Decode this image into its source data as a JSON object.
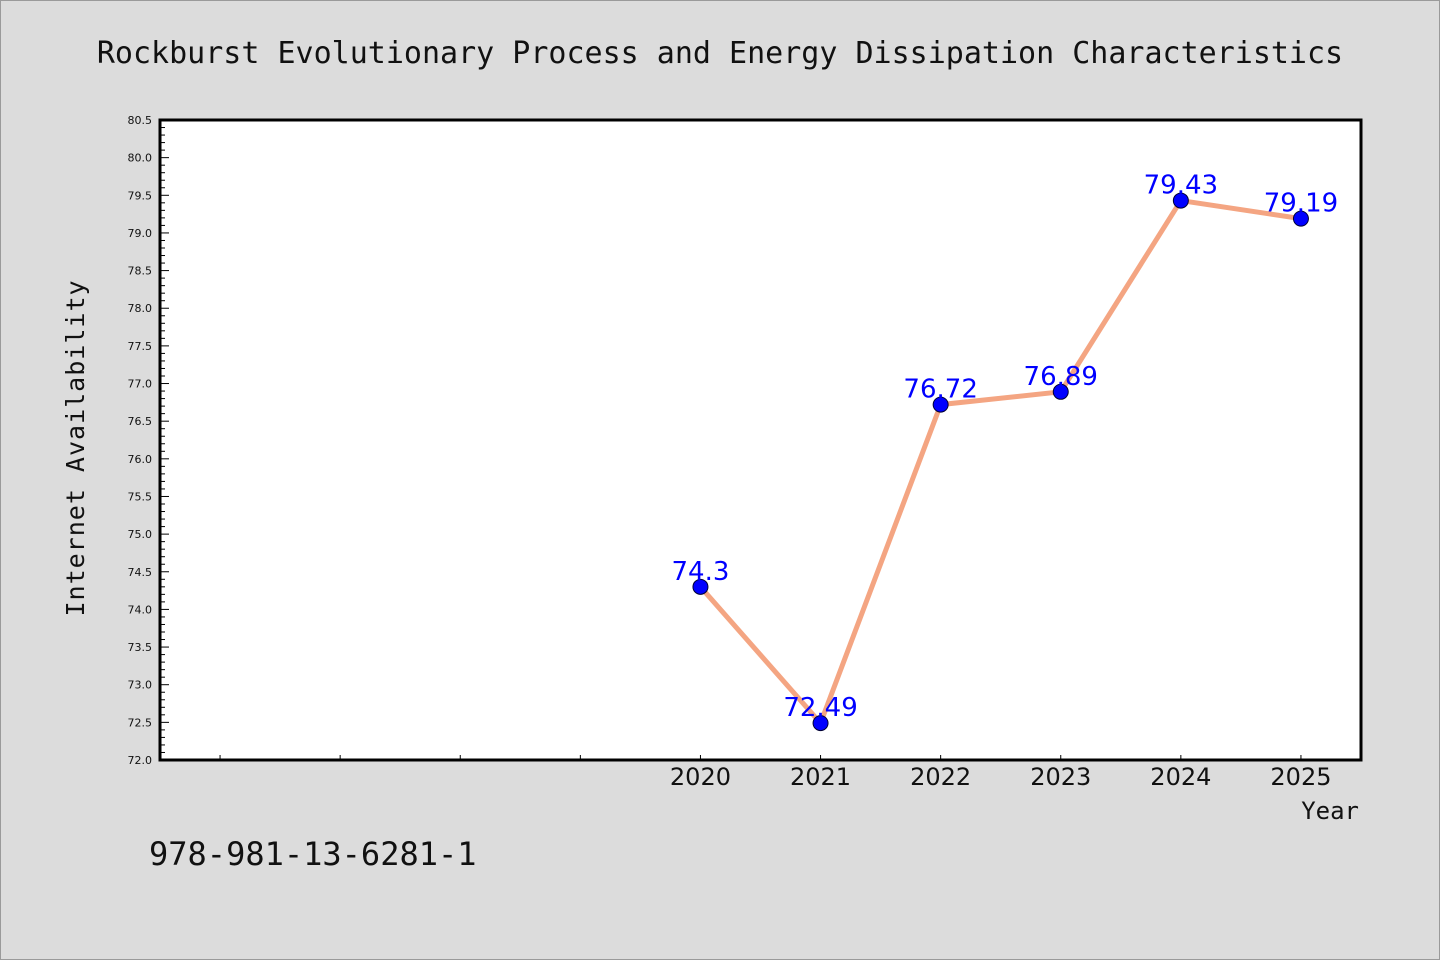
{
  "chart_data": {
    "type": "line",
    "title": "Rockburst Evolutionary Process and Energy Dissipation Characteristics",
    "xlabel": "Year",
    "ylabel": "Internet Availability",
    "x": [
      2020,
      2021,
      2022,
      2023,
      2024,
      2025
    ],
    "x_tick_labels": [
      "2020",
      "2021",
      "2022",
      "2023",
      "2024",
      "2025"
    ],
    "series": [
      {
        "values": [
          74.3,
          72.49,
          76.72,
          76.89,
          79.43,
          79.19
        ],
        "data_labels": [
          "74.3",
          "72.49",
          "76.72",
          "76.89",
          "79.43",
          "79.19"
        ],
        "line_color": "#f4a582",
        "marker_color": "#0000ff"
      }
    ],
    "xlim": [
      2015.5,
      2025.5
    ],
    "ylim": [
      72.0,
      80.5
    ],
    "y_tick_step": 0.5,
    "y_tick_labels": [
      "72.0",
      "72.5",
      "73.0",
      "73.5",
      "74.0",
      "74.5",
      "75.0",
      "75.5",
      "76.0",
      "76.5",
      "77.0",
      "77.5",
      "78.0",
      "78.5",
      "79.0",
      "79.5",
      "80.0",
      "80.5"
    ],
    "grid": false,
    "legend": "none"
  },
  "annotation": {
    "isbn": "978-981-13-6281-1"
  }
}
